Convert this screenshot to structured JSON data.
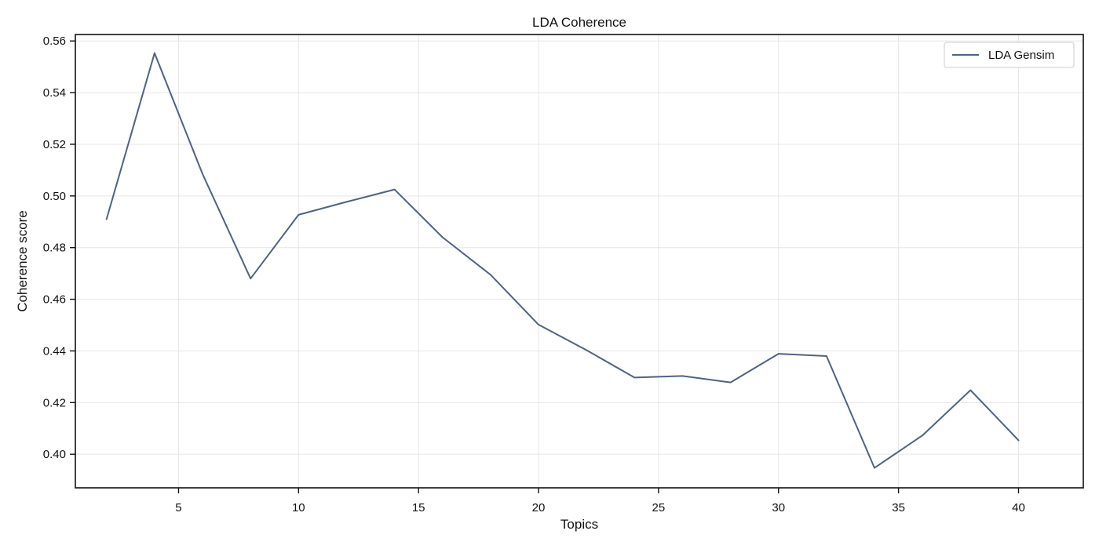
{
  "chart_data": {
    "type": "line",
    "title": "LDA Coherence",
    "xlabel": "Topics",
    "ylabel": "Coherence score",
    "xlim": [
      0.7,
      42.7
    ],
    "ylim": [
      0.387,
      0.5625
    ],
    "xticks": [
      5,
      10,
      15,
      20,
      25,
      30,
      35,
      40
    ],
    "yticks": [
      0.4,
      0.42,
      0.44,
      0.46,
      0.48,
      0.5,
      0.52,
      0.54,
      0.56
    ],
    "grid": true,
    "legend_position": "top-right",
    "series": [
      {
        "name": "LDA Gensim",
        "color": "#4f6282",
        "x": [
          2,
          4,
          6,
          8,
          10,
          12,
          14,
          16,
          18,
          20,
          22,
          24,
          26,
          28,
          30,
          32,
          34,
          36,
          38,
          40
        ],
        "y": [
          0.491,
          0.5553,
          0.5085,
          0.468,
          0.4927,
          0.4977,
          0.5025,
          0.484,
          0.4695,
          0.4502,
          0.4403,
          0.4297,
          0.4303,
          0.4278,
          0.4389,
          0.438,
          0.3947,
          0.4073,
          0.4248,
          0.4054
        ]
      }
    ]
  }
}
